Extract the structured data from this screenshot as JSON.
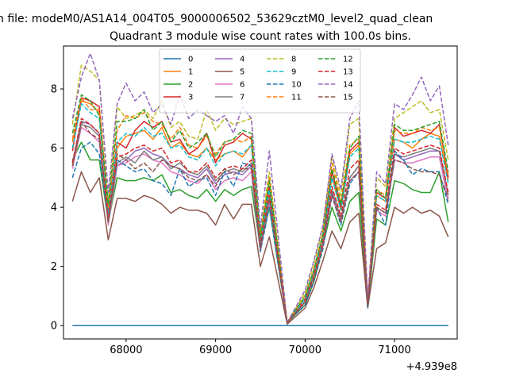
{
  "page_title": "n file: modeM0/AS1A14_004T05_9000006502_53629cztM0_level2_quad_clean",
  "chart_data": {
    "type": "line",
    "title": "Quadrant 3 module wise count rates with 100.0s bins.",
    "xlabel": "",
    "ylabel": "",
    "x_offset_label": "+4.939e8",
    "x_ticks": [
      68000,
      69000,
      70000,
      71000
    ],
    "x_tick_labels": [
      "68000",
      "69000",
      "70000",
      "71000"
    ],
    "y_ticks": [
      0,
      2,
      4,
      6,
      8
    ],
    "y_tick_labels": [
      "0",
      "2",
      "4",
      "6",
      "8"
    ],
    "xlim": [
      67300,
      71700
    ],
    "ylim": [
      -0.45,
      9.45
    ],
    "grid": false,
    "legend_position": "top-center",
    "legend_columns": 4,
    "x": [
      67400,
      67500,
      67600,
      67700,
      67800,
      67900,
      68000,
      68100,
      68200,
      68300,
      68400,
      68500,
      68600,
      68700,
      68800,
      68900,
      69000,
      69100,
      69200,
      69300,
      69400,
      69500,
      69600,
      69800,
      70000,
      70100,
      70200,
      70300,
      70400,
      70500,
      70600,
      70700,
      70800,
      70900,
      71000,
      71100,
      71200,
      71300,
      71400,
      71500,
      71600
    ],
    "series": [
      {
        "name": "0",
        "color": "#1f77b4",
        "dash": "solid",
        "values": [
          0,
          0,
          0,
          0,
          0,
          0,
          0,
          0,
          0,
          0,
          0,
          0,
          0,
          0,
          0,
          0,
          0,
          0,
          0,
          0,
          0,
          0,
          0,
          0,
          0,
          0,
          0,
          0,
          0,
          0,
          0,
          0,
          0,
          0,
          0,
          0,
          0,
          0,
          0,
          0,
          0
        ]
      },
      {
        "name": "1",
        "color": "#ff7f0e",
        "dash": "solid",
        "values": [
          6.2,
          7.6,
          7.5,
          7.2,
          3.9,
          6.0,
          6.4,
          6.5,
          6.6,
          6.3,
          6.7,
          6.0,
          6.2,
          5.8,
          5.7,
          6.0,
          5.6,
          5.8,
          5.9,
          5.7,
          6.1,
          2.8,
          4.6,
          0.1,
          0.9,
          1.8,
          3.0,
          5.0,
          3.9,
          5.8,
          6.1,
          0.7,
          4.4,
          4.2,
          6.3,
          6.2,
          6.0,
          6.3,
          6.5,
          6.4,
          4.9
        ]
      },
      {
        "name": "2",
        "color": "#2ca02c",
        "dash": "solid",
        "values": [
          5.6,
          6.2,
          5.6,
          5.6,
          3.5,
          5.0,
          4.9,
          4.9,
          5.0,
          4.9,
          5.1,
          4.5,
          4.6,
          4.4,
          4.3,
          4.6,
          4.2,
          4.6,
          4.4,
          4.6,
          4.7,
          2.6,
          4.0,
          0.1,
          0.7,
          1.5,
          2.7,
          4.0,
          3.2,
          4.2,
          4.5,
          0.6,
          3.6,
          3.4,
          4.9,
          4.8,
          4.6,
          4.5,
          4.5,
          5.2,
          3.5
        ]
      },
      {
        "name": "3",
        "color": "#d62728",
        "dash": "solid",
        "values": [
          5.9,
          7.7,
          7.6,
          7.4,
          3.8,
          6.2,
          6.0,
          6.6,
          6.9,
          6.7,
          6.9,
          6.2,
          6.3,
          5.8,
          6.0,
          6.5,
          5.5,
          6.1,
          6.2,
          6.5,
          6.3,
          2.9,
          4.7,
          0.1,
          0.9,
          1.9,
          3.0,
          5.2,
          4.0,
          5.9,
          6.2,
          0.8,
          4.5,
          4.3,
          6.7,
          6.4,
          6.5,
          6.6,
          6.5,
          6.8,
          5.0
        ]
      },
      {
        "name": "4",
        "color": "#9467bd",
        "dash": "solid",
        "values": [
          5.5,
          6.9,
          6.8,
          6.5,
          3.5,
          5.4,
          5.6,
          5.9,
          6.0,
          5.8,
          5.7,
          5.4,
          5.3,
          5.1,
          5.0,
          5.3,
          4.8,
          5.1,
          5.2,
          5.1,
          5.4,
          2.6,
          4.3,
          0.1,
          0.8,
          1.7,
          2.8,
          4.5,
          3.6,
          5.0,
          5.4,
          0.7,
          4.0,
          3.8,
          5.8,
          5.6,
          5.7,
          5.8,
          5.9,
          5.9,
          4.4
        ]
      },
      {
        "name": "5",
        "color": "#8c564b",
        "dash": "solid",
        "values": [
          4.2,
          5.2,
          4.5,
          5.0,
          2.9,
          4.3,
          4.3,
          4.2,
          4.4,
          4.3,
          4.1,
          3.8,
          4.0,
          3.9,
          3.9,
          3.8,
          3.4,
          4.1,
          3.6,
          4.1,
          4.1,
          2.0,
          3.0,
          0.05,
          0.6,
          1.3,
          2.2,
          3.2,
          2.6,
          3.5,
          3.8,
          0.6,
          2.6,
          2.8,
          4.0,
          3.8,
          4.0,
          3.8,
          3.9,
          3.7,
          3.0
        ]
      },
      {
        "name": "6",
        "color": "#e377c2",
        "dash": "solid",
        "values": [
          5.3,
          6.7,
          6.5,
          6.2,
          3.4,
          5.4,
          5.5,
          5.7,
          5.8,
          5.6,
          5.5,
          5.2,
          5.1,
          4.9,
          4.8,
          5.1,
          4.6,
          4.9,
          5.0,
          4.9,
          5.2,
          2.5,
          4.2,
          0.1,
          0.8,
          1.7,
          2.7,
          4.4,
          3.5,
          4.9,
          5.2,
          0.7,
          3.9,
          3.7,
          5.6,
          5.5,
          5.5,
          5.6,
          5.7,
          5.7,
          4.2
        ]
      },
      {
        "name": "7",
        "color": "#7f7f7f",
        "dash": "solid",
        "values": [
          5.4,
          6.8,
          6.7,
          6.4,
          3.5,
          5.5,
          5.7,
          5.5,
          5.9,
          5.6,
          5.7,
          5.3,
          5.5,
          5.2,
          5.1,
          5.4,
          4.9,
          5.2,
          5.3,
          5.2,
          5.5,
          2.6,
          4.3,
          0.1,
          0.8,
          1.7,
          2.8,
          4.6,
          3.6,
          5.0,
          5.4,
          0.7,
          4.0,
          3.8,
          5.8,
          5.7,
          5.8,
          5.9,
          6.0,
          5.9,
          4.4
        ]
      },
      {
        "name": "8",
        "color": "#bcbd22",
        "dash": "dashed",
        "values": [
          6.8,
          8.8,
          8.6,
          8.3,
          4.2,
          7.4,
          7.0,
          7.1,
          7.3,
          7.0,
          7.6,
          6.7,
          6.9,
          6.4,
          6.3,
          7.3,
          6.6,
          7.0,
          6.8,
          6.9,
          7.0,
          3.2,
          5.2,
          0.1,
          1.1,
          2.1,
          3.3,
          5.7,
          4.4,
          6.8,
          7.0,
          0.8,
          5.0,
          4.7,
          7.0,
          7.2,
          7.4,
          7.6,
          7.2,
          7.3,
          5.6
        ]
      },
      {
        "name": "9",
        "color": "#17becf",
        "dash": "dashed",
        "values": [
          6.0,
          7.5,
          7.2,
          7.0,
          3.8,
          6.2,
          6.5,
          6.4,
          6.7,
          6.4,
          6.5,
          6.0,
          6.1,
          5.7,
          5.6,
          6.0,
          5.4,
          5.8,
          5.9,
          5.8,
          6.1,
          2.8,
          4.6,
          0.1,
          0.9,
          1.8,
          2.9,
          5.0,
          3.9,
          5.7,
          6.0,
          0.7,
          4.4,
          4.2,
          6.3,
          6.2,
          6.2,
          6.3,
          6.4,
          6.3,
          4.8
        ]
      },
      {
        "name": "10",
        "color": "#1f77b4",
        "dash": "dashed",
        "values": [
          5.0,
          6.0,
          6.2,
          5.8,
          3.6,
          5.6,
          5.4,
          5.2,
          5.3,
          4.9,
          4.8,
          4.4,
          5.3,
          4.7,
          4.9,
          5.0,
          4.4,
          5.2,
          4.7,
          5.5,
          5.4,
          2.5,
          4.0,
          0.1,
          0.7,
          1.5,
          2.6,
          4.4,
          3.4,
          4.8,
          5.2,
          0.6,
          4.0,
          3.4,
          5.9,
          5.6,
          5.1,
          5.3,
          5.2,
          5.2,
          4.1
        ]
      },
      {
        "name": "11",
        "color": "#ff7f0e",
        "dash": "dashed",
        "values": [
          6.3,
          7.7,
          7.3,
          7.3,
          4.0,
          6.6,
          7.1,
          7.0,
          7.2,
          6.9,
          6.8,
          6.3,
          6.7,
          6.1,
          6.0,
          6.4,
          5.8,
          6.2,
          6.3,
          6.2,
          6.4,
          3.0,
          5.0,
          0.1,
          1.0,
          1.9,
          3.1,
          5.5,
          4.2,
          6.1,
          6.3,
          0.8,
          4.6,
          4.4,
          6.6,
          6.5,
          6.5,
          6.7,
          6.6,
          6.7,
          5.1
        ]
      },
      {
        "name": "12",
        "color": "#2ca02c",
        "dash": "dashed",
        "values": [
          6.5,
          7.8,
          7.6,
          7.1,
          4.1,
          6.9,
          6.9,
          7.0,
          7.3,
          6.6,
          6.9,
          6.2,
          6.6,
          6.0,
          6.2,
          6.5,
          5.7,
          6.2,
          6.3,
          6.6,
          6.5,
          3.0,
          4.9,
          0.1,
          1.0,
          1.9,
          3.1,
          5.3,
          4.1,
          6.0,
          6.4,
          0.8,
          4.6,
          4.3,
          6.8,
          6.6,
          6.6,
          6.7,
          6.8,
          6.9,
          5.2
        ]
      },
      {
        "name": "13",
        "color": "#d62728",
        "dash": "dashed",
        "values": [
          5.5,
          7.0,
          6.8,
          6.5,
          3.6,
          5.7,
          5.8,
          6.0,
          6.1,
          5.9,
          6.0,
          5.5,
          5.6,
          5.2,
          5.2,
          5.5,
          5.0,
          5.3,
          5.4,
          5.3,
          5.6,
          2.7,
          4.4,
          0.1,
          0.8,
          1.7,
          2.8,
          4.7,
          3.7,
          5.3,
          5.6,
          0.7,
          4.1,
          3.9,
          6.0,
          5.8,
          5.9,
          6.0,
          6.1,
          6.0,
          4.5
        ]
      },
      {
        "name": "14",
        "color": "#9467bd",
        "dash": "dashed",
        "values": [
          7.0,
          8.4,
          9.2,
          8.3,
          4.5,
          7.5,
          8.2,
          7.6,
          7.9,
          7.2,
          7.5,
          6.8,
          7.8,
          7.0,
          7.3,
          7.1,
          6.9,
          7.1,
          6.5,
          7.4,
          7.0,
          3.3,
          5.9,
          0.1,
          1.2,
          2.2,
          3.4,
          5.8,
          4.6,
          7.0,
          7.6,
          0.9,
          5.2,
          4.8,
          7.5,
          7.3,
          7.8,
          8.4,
          7.6,
          8.1,
          6.1
        ]
      },
      {
        "name": "15",
        "color": "#8c564b",
        "dash": "dashed",
        "values": [
          5.4,
          6.9,
          6.5,
          6.3,
          3.5,
          5.8,
          5.6,
          5.3,
          5.5,
          5.2,
          5.6,
          5.4,
          5.3,
          5.0,
          4.9,
          5.1,
          4.7,
          5.3,
          5.1,
          5.3,
          5.3,
          2.6,
          4.3,
          0.1,
          0.8,
          1.6,
          2.7,
          4.4,
          3.5,
          4.9,
          5.2,
          0.7,
          4.0,
          3.8,
          5.6,
          5.5,
          5.3,
          5.2,
          5.2,
          5.1,
          4.3
        ]
      }
    ]
  }
}
